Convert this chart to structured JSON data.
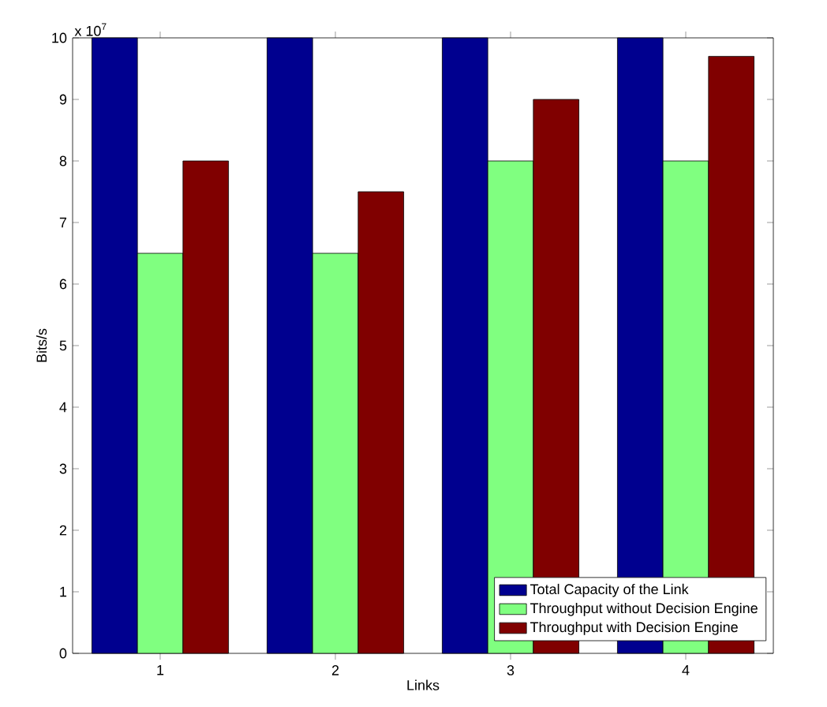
{
  "chart_data": {
    "type": "bar",
    "xlabel": "Links",
    "ylabel": "Bits/s",
    "categories": [
      "1",
      "2",
      "3",
      "4"
    ],
    "series": [
      {
        "name": "Total Capacity of the Link",
        "color": "#00008f",
        "values": [
          10,
          10,
          10,
          10
        ]
      },
      {
        "name": "Throughput without Decision Engine",
        "color": "#80ff80",
        "values": [
          6.5,
          6.5,
          8,
          8
        ]
      },
      {
        "name": "Throughput with Decision Engine",
        "color": "#800000",
        "values": [
          8,
          7.5,
          9,
          9.7
        ]
      }
    ],
    "ylim": [
      0,
      10
    ],
    "yticks": [
      0,
      1,
      2,
      3,
      4,
      5,
      6,
      7,
      8,
      9,
      10
    ],
    "annotations": [
      "x 10$^{7}$"
    ],
    "legend": "bottom right",
    "grid": false
  }
}
